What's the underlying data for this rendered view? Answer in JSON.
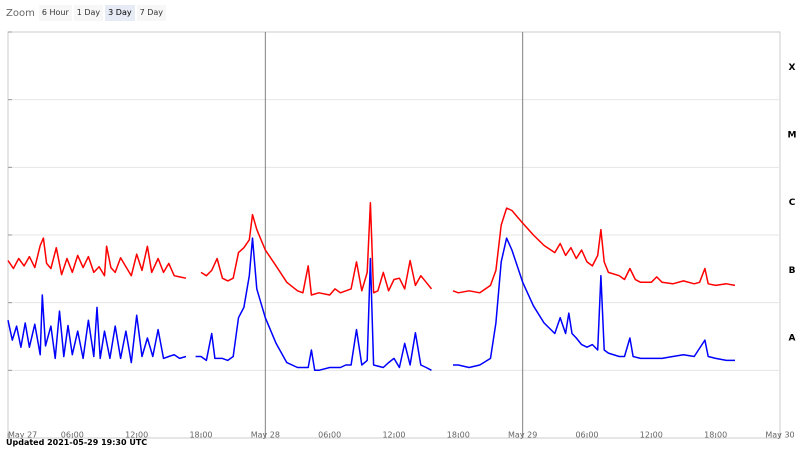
{
  "zoom": {
    "label": "Zoom",
    "buttons": [
      "6 Hour",
      "1 Day",
      "3 Day",
      "7 Day"
    ],
    "active": "3 Day"
  },
  "updated": "Updated 2021-05-29 19:30 UTC",
  "colors": {
    "upper": "#ff0000",
    "lower": "#0000ff",
    "grid": "#e6e6e6",
    "marker": "#808080"
  },
  "chart_data": {
    "type": "line",
    "xlabel": "",
    "ylabel": "",
    "y_log": true,
    "ylim": [
      1e-09,
      0.001
    ],
    "y_classes": [
      "A",
      "B",
      "C",
      "M",
      "X"
    ],
    "x_range_hours": [
      0,
      72
    ],
    "x_tick_labels": [
      "May 27",
      "06:00",
      "12:00",
      "18:00",
      "May 28",
      "06:00",
      "12:00",
      "18:00",
      "May 29",
      "06:00",
      "12:00",
      "18:00",
      "May 30"
    ],
    "day_markers": [
      "May 28",
      "May 29"
    ],
    "series": [
      {
        "color": "#ff0000",
        "segments": [
          [
            [
              0,
              4.2e-07
            ],
            [
              0.5,
              3.2e-07
            ],
            [
              1,
              4.5e-07
            ],
            [
              1.5,
              3.5e-07
            ],
            [
              2,
              4.8e-07
            ],
            [
              2.5,
              3.3e-07
            ],
            [
              3,
              7e-07
            ],
            [
              3.3,
              9e-07
            ],
            [
              3.6,
              3.8e-07
            ],
            [
              4,
              3.2e-07
            ],
            [
              4.5,
              6.5e-07
            ],
            [
              5,
              2.6e-07
            ],
            [
              5.5,
              4.5e-07
            ],
            [
              6,
              2.8e-07
            ],
            [
              6.5,
              5e-07
            ],
            [
              7,
              3.3e-07
            ],
            [
              7.5,
              4.8e-07
            ],
            [
              8,
              2.8e-07
            ],
            [
              8.5,
              3.4e-07
            ],
            [
              9,
              2.5e-07
            ],
            [
              9.2,
              6.8e-07
            ],
            [
              9.6,
              3.3e-07
            ],
            [
              10,
              2.8e-07
            ],
            [
              10.5,
              4.6e-07
            ],
            [
              11,
              3.4e-07
            ],
            [
              11.5,
              2.5e-07
            ],
            [
              12,
              5.2e-07
            ],
            [
              12.5,
              3e-07
            ],
            [
              13,
              6.8e-07
            ],
            [
              13.4,
              2.8e-07
            ],
            [
              14,
              4.5e-07
            ],
            [
              14.5,
              2.8e-07
            ],
            [
              15,
              3.8e-07
            ],
            [
              15.5,
              2.5e-07
            ],
            [
              16,
              2.4e-07
            ],
            [
              16.6,
              2.3e-07
            ]
          ],
          [
            [
              18,
              2.8e-07
            ],
            [
              18.5,
              2.5e-07
            ],
            [
              19,
              3e-07
            ],
            [
              19.5,
              4.5e-07
            ],
            [
              20,
              2.3e-07
            ],
            [
              20.5,
              2.1e-07
            ],
            [
              21,
              2.3e-07
            ],
            [
              21.5,
              5.5e-07
            ],
            [
              22,
              6.5e-07
            ],
            [
              22.5,
              8.5e-07
            ],
            [
              22.8,
              2e-06
            ],
            [
              23.2,
              1.2e-06
            ],
            [
              24,
              6e-07
            ],
            [
              25,
              3.5e-07
            ],
            [
              26,
              2e-07
            ],
            [
              27,
              1.5e-07
            ],
            [
              27.5,
              1.4e-07
            ],
            [
              28,
              3.5e-07
            ],
            [
              28.3,
              1.3e-07
            ],
            [
              29,
              1.4e-07
            ],
            [
              30,
              1.3e-07
            ],
            [
              30.5,
              1.6e-07
            ],
            [
              31,
              1.4e-07
            ],
            [
              32,
              1.6e-07
            ],
            [
              32.5,
              4e-07
            ],
            [
              33,
              1.5e-07
            ],
            [
              33.5,
              2.8e-07
            ],
            [
              33.8,
              3e-06
            ],
            [
              34.1,
              1.4e-07
            ],
            [
              34.5,
              1.5e-07
            ],
            [
              35,
              2.8e-07
            ],
            [
              35.5,
              1.5e-07
            ],
            [
              36,
              2.2e-07
            ],
            [
              36.5,
              2.3e-07
            ],
            [
              37,
              1.6e-07
            ],
            [
              37.5,
              4.2e-07
            ],
            [
              38,
              1.8e-07
            ],
            [
              38.5,
              2.5e-07
            ],
            [
              39,
              2e-07
            ],
            [
              39.5,
              1.6e-07
            ]
          ],
          [
            [
              41.5,
              1.5e-07
            ],
            [
              42,
              1.4e-07
            ],
            [
              43,
              1.5e-07
            ],
            [
              44,
              1.4e-07
            ],
            [
              45,
              1.8e-07
            ],
            [
              45.5,
              3e-07
            ],
            [
              46,
              1.4e-06
            ],
            [
              46.5,
              2.5e-06
            ],
            [
              47,
              2.3e-06
            ],
            [
              48,
              1.5e-06
            ],
            [
              49,
              1e-06
            ],
            [
              50,
              7e-07
            ],
            [
              51,
              5.5e-07
            ],
            [
              51.5,
              7.5e-07
            ],
            [
              52,
              5e-07
            ],
            [
              52.5,
              6.5e-07
            ],
            [
              53,
              4.5e-07
            ],
            [
              53.5,
              6e-07
            ],
            [
              54,
              4e-07
            ],
            [
              54.5,
              3.5e-07
            ],
            [
              55,
              5e-07
            ],
            [
              55.3,
              1.2e-06
            ],
            [
              55.6,
              4e-07
            ],
            [
              56,
              2.8e-07
            ],
            [
              57,
              2.5e-07
            ],
            [
              57.5,
              2.2e-07
            ],
            [
              58,
              3.2e-07
            ],
            [
              58.5,
              2.2e-07
            ],
            [
              59,
              2e-07
            ],
            [
              60,
              2e-07
            ],
            [
              60.5,
              2.4e-07
            ],
            [
              61,
              2e-07
            ],
            [
              62,
              1.9e-07
            ],
            [
              63,
              2.1e-07
            ],
            [
              64,
              1.9e-07
            ],
            [
              64.5,
              2e-07
            ],
            [
              65,
              3.2e-07
            ],
            [
              65.3,
              1.9e-07
            ],
            [
              66,
              1.8e-07
            ],
            [
              67,
              1.9e-07
            ],
            [
              67.8,
              1.8e-07
            ]
          ]
        ]
      },
      {
        "color": "#0000ff",
        "segments": [
          [
            [
              0,
              5.5e-08
            ],
            [
              0.4,
              2.8e-08
            ],
            [
              0.8,
              4.5e-08
            ],
            [
              1.2,
              2.2e-08
            ],
            [
              1.6,
              5e-08
            ],
            [
              2,
              2.2e-08
            ],
            [
              2.5,
              4.8e-08
            ],
            [
              3,
              1.7e-08
            ],
            [
              3.2,
              1.3e-07
            ],
            [
              3.5,
              2.3e-08
            ],
            [
              4,
              4.5e-08
            ],
            [
              4.4,
              1.5e-08
            ],
            [
              4.8,
              7.5e-08
            ],
            [
              5.2,
              1.6e-08
            ],
            [
              5.6,
              4.6e-08
            ],
            [
              6,
              1.7e-08
            ],
            [
              6.5,
              3.8e-08
            ],
            [
              7,
              1.5e-08
            ],
            [
              7.5,
              5.5e-08
            ],
            [
              8,
              1.6e-08
            ],
            [
              8.3,
              8.5e-08
            ],
            [
              8.6,
              1.5e-08
            ],
            [
              9,
              3.8e-08
            ],
            [
              9.5,
              1.5e-08
            ],
            [
              10,
              4.5e-08
            ],
            [
              10.5,
              1.5e-08
            ],
            [
              11,
              3.8e-08
            ],
            [
              11.5,
              1.3e-08
            ],
            [
              12,
              6.5e-08
            ],
            [
              12.5,
              1.6e-08
            ],
            [
              13,
              3e-08
            ],
            [
              13.5,
              1.6e-08
            ],
            [
              14,
              4e-08
            ],
            [
              14.5,
              1.5e-08
            ],
            [
              15,
              1.6e-08
            ],
            [
              15.5,
              1.7e-08
            ],
            [
              16,
              1.5e-08
            ],
            [
              16.6,
              1.6e-08
            ]
          ],
          [
            [
              17.5,
              1.6e-08
            ],
            [
              18,
              1.6e-08
            ],
            [
              18.5,
              1.4e-08
            ],
            [
              19,
              3.5e-08
            ],
            [
              19.3,
              1.5e-08
            ],
            [
              20,
              1.5e-08
            ],
            [
              20.5,
              1.4e-08
            ],
            [
              21,
              1.6e-08
            ],
            [
              21.5,
              6e-08
            ],
            [
              22,
              8.5e-08
            ],
            [
              22.5,
              2.5e-07
            ],
            [
              22.8,
              9e-07
            ],
            [
              23.2,
              1.6e-07
            ],
            [
              24,
              6e-08
            ],
            [
              25,
              2.5e-08
            ],
            [
              26,
              1.3e-08
            ],
            [
              27,
              1.1e-08
            ],
            [
              28,
              1.1e-08
            ],
            [
              28.3,
              2e-08
            ],
            [
              28.6,
              1e-08
            ],
            [
              29,
              1e-08
            ],
            [
              30,
              1.1e-08
            ],
            [
              31,
              1.1e-08
            ],
            [
              31.5,
              1.2e-08
            ],
            [
              32,
              1.2e-08
            ],
            [
              32.5,
              4e-08
            ],
            [
              33,
              1.2e-08
            ],
            [
              33.5,
              1.4e-08
            ],
            [
              33.8,
              4.5e-07
            ],
            [
              34.1,
              1.2e-08
            ],
            [
              35,
              1.1e-08
            ],
            [
              35.5,
              1.3e-08
            ],
            [
              36,
              1.5e-08
            ],
            [
              36.5,
              1.1e-08
            ],
            [
              37,
              2.5e-08
            ],
            [
              37.5,
              1.2e-08
            ],
            [
              38,
              3.6e-08
            ],
            [
              38.5,
              1.2e-08
            ],
            [
              39,
              1.1e-08
            ],
            [
              39.5,
              1e-08
            ]
          ],
          [
            [
              41.5,
              1.2e-08
            ],
            [
              42,
              1.2e-08
            ],
            [
              43,
              1.1e-08
            ],
            [
              44,
              1.2e-08
            ],
            [
              45,
              1.5e-08
            ],
            [
              45.5,
              5e-08
            ],
            [
              46,
              4e-07
            ],
            [
              46.5,
              9e-07
            ],
            [
              47,
              6e-07
            ],
            [
              48,
              2e-07
            ],
            [
              49,
              9e-08
            ],
            [
              50,
              5e-08
            ],
            [
              51,
              3.5e-08
            ],
            [
              51.5,
              6e-08
            ],
            [
              52,
              3.5e-08
            ],
            [
              52.3,
              7e-08
            ],
            [
              52.6,
              3.5e-08
            ],
            [
              53,
              3e-08
            ],
            [
              53.5,
              2.4e-08
            ],
            [
              54,
              2.2e-08
            ],
            [
              54.5,
              2.4e-08
            ],
            [
              55,
              2e-08
            ],
            [
              55.3,
              2.5e-07
            ],
            [
              55.6,
              2e-08
            ],
            [
              56,
              1.8e-08
            ],
            [
              57,
              1.6e-08
            ],
            [
              57.5,
              1.6e-08
            ],
            [
              58,
              3e-08
            ],
            [
              58.3,
              1.6e-08
            ],
            [
              59,
              1.5e-08
            ],
            [
              60,
              1.5e-08
            ],
            [
              61,
              1.5e-08
            ],
            [
              62,
              1.6e-08
            ],
            [
              63,
              1.7e-08
            ],
            [
              64,
              1.6e-08
            ],
            [
              65,
              2.8e-08
            ],
            [
              65.3,
              1.6e-08
            ],
            [
              66,
              1.5e-08
            ],
            [
              67,
              1.4e-08
            ],
            [
              67.8,
              1.4e-08
            ]
          ]
        ]
      }
    ]
  }
}
